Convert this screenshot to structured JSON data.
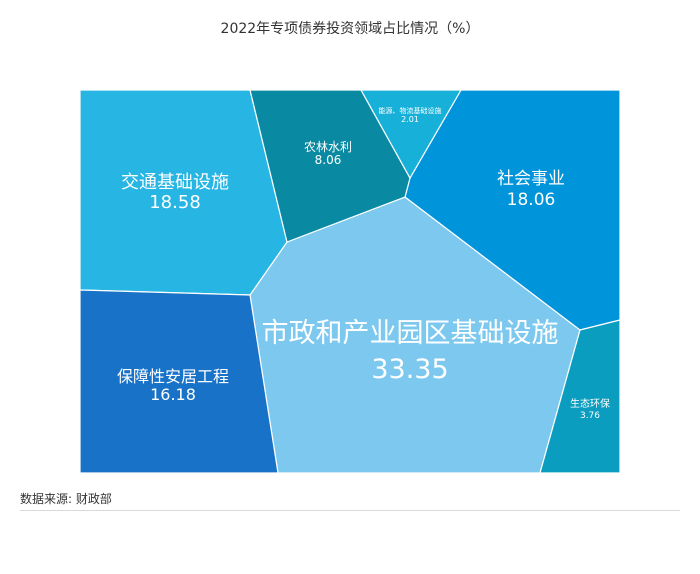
{
  "chart_data": {
    "type": "voronoi-treemap",
    "title": "2022年专项债券投资领域占比情况（%）",
    "cells": [
      {
        "label": "市政和产业园区基础设施",
        "value": 33.35,
        "color": "#7cc8ef"
      },
      {
        "label": "交通基础设施",
        "value": 18.58,
        "color": "#27b5e4"
      },
      {
        "label": "社会事业",
        "value": 18.06,
        "color": "#0094db"
      },
      {
        "label": "保障性安居工程",
        "value": 16.18,
        "color": "#1872c7"
      },
      {
        "label": "农林水利",
        "value": 8.06,
        "color": "#0a8aa2"
      },
      {
        "label": "生态环保",
        "value": 3.76,
        "color": "#0b9dbf"
      },
      {
        "label": "能源、物流基础设施",
        "value": 2.01,
        "color": "#16b0d8"
      }
    ]
  },
  "footer": {
    "source": "数据来源: 财政部"
  }
}
